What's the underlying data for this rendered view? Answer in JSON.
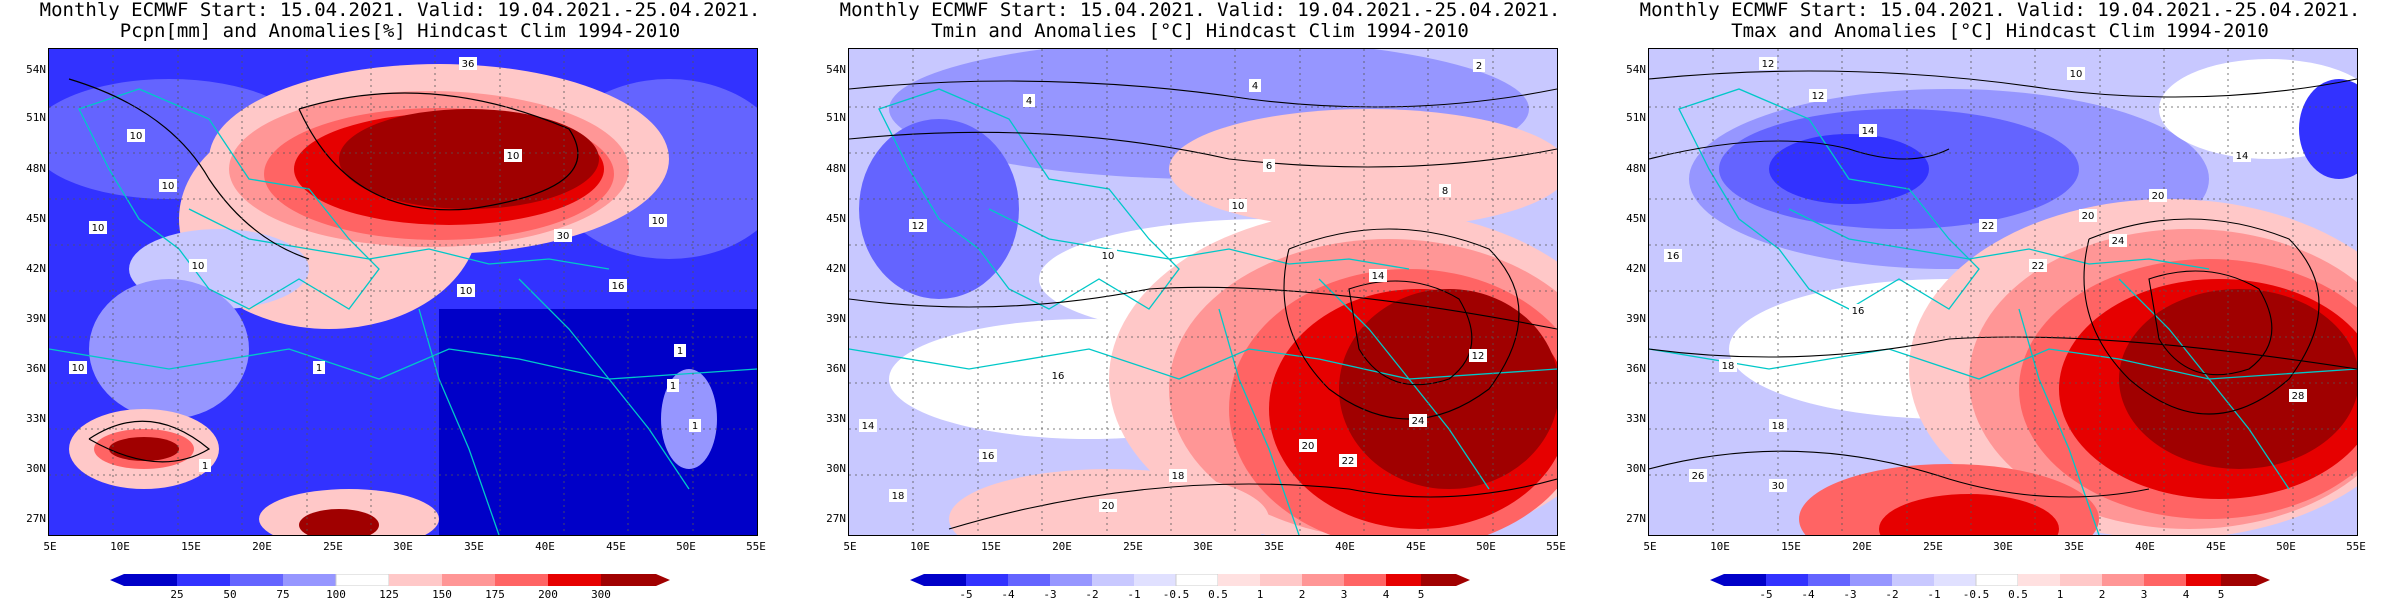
{
  "colors": {
    "deep_blue": "#0000c8",
    "blue": "#3232ff",
    "mid_blue": "#6464ff",
    "light_blue": "#9696ff",
    "pale_blue": "#c8c8ff",
    "pale_red": "#ffc8c8",
    "light_red": "#ff9696",
    "mid_red": "#ff6464",
    "red": "#e60000",
    "dark_red": "#a00000",
    "border_cyan": "#00c8c8"
  },
  "axes": {
    "lat_labels": [
      "54N",
      "51N",
      "48N",
      "45N",
      "42N",
      "39N",
      "36N",
      "33N",
      "30N",
      "27N"
    ],
    "lon_labels": [
      "5E",
      "10E",
      "15E",
      "20E",
      "25E",
      "30E",
      "35E",
      "40E",
      "45E",
      "50E",
      "55E"
    ]
  },
  "panels": [
    {
      "title_line1": "Monthly ECMWF Start: 15.04.2021. Valid: 19.04.2021.-25.04.2021.",
      "title_line2": "Pcpn[mm] and Anomalies[%] Hindcast Clim 1994-2010",
      "colorbar_labels": [
        "25",
        "50",
        "75",
        "100",
        "125",
        "150",
        "175",
        "200",
        "300"
      ],
      "contour_labels": [
        "36",
        "10",
        "10",
        "10",
        "30",
        "10",
        "10",
        "10",
        "10",
        "10",
        "1",
        "1",
        "1",
        "1",
        "1",
        "16"
      ]
    },
    {
      "title_line1": "Monthly ECMWF Start: 15.04.2021. Valid: 19.04.2021.-25.04.2021.",
      "title_line2": "Tmin and Anomalies [°C] Hindcast Clim 1994-2010",
      "colorbar_labels": [
        "-5",
        "-4",
        "-3",
        "-2",
        "-1",
        "-0.5",
        "0.5",
        "1",
        "2",
        "3",
        "4",
        "5"
      ],
      "contour_labels": [
        "2",
        "4",
        "4",
        "6",
        "8",
        "10",
        "12",
        "14",
        "16",
        "18",
        "20",
        "22",
        "24",
        "14",
        "16",
        "18",
        "20",
        "10",
        "12"
      ]
    },
    {
      "title_line1": "Monthly ECMWF Start: 15.04.2021. Valid: 19.04.2021.-25.04.2021.",
      "title_line2": "Tmax and Anomalies [°C] Hindcast Clim 1994-2010",
      "colorbar_labels": [
        "-5",
        "-4",
        "-3",
        "-2",
        "-1",
        "-0.5",
        "0.5",
        "1",
        "2",
        "3",
        "4",
        "5"
      ],
      "contour_labels": [
        "10",
        "12",
        "14",
        "16",
        "18",
        "20",
        "22",
        "24",
        "26",
        "28",
        "30",
        "12",
        "14",
        "16",
        "18",
        "20",
        "22"
      ]
    }
  ]
}
